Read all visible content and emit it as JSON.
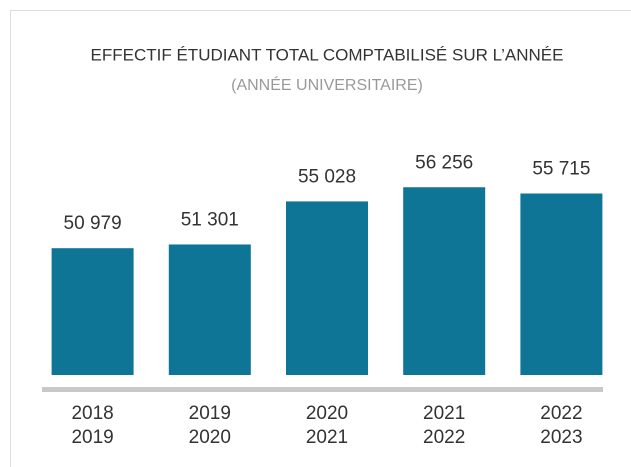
{
  "chart_data": {
    "type": "bar",
    "title": "EFFECTIF ÉTUDIANT TOTAL COMPTABILISÉ SUR L’ANNÉE",
    "subtitle": "(ANNÉE UNIVERSITAIRE)",
    "categories": [
      [
        "2018",
        "2019"
      ],
      [
        "2019",
        "2020"
      ],
      [
        "2020",
        "2021"
      ],
      [
        "2021",
        "2022"
      ],
      [
        "2022",
        "2023"
      ]
    ],
    "values": [
      50979,
      51301,
      55028,
      56256,
      55715
    ],
    "value_labels": [
      "50 979",
      "51 301",
      "55 028",
      "56 256",
      "55 715"
    ],
    "color": "#0e7597",
    "ylim": [
      40000,
      60000
    ]
  }
}
